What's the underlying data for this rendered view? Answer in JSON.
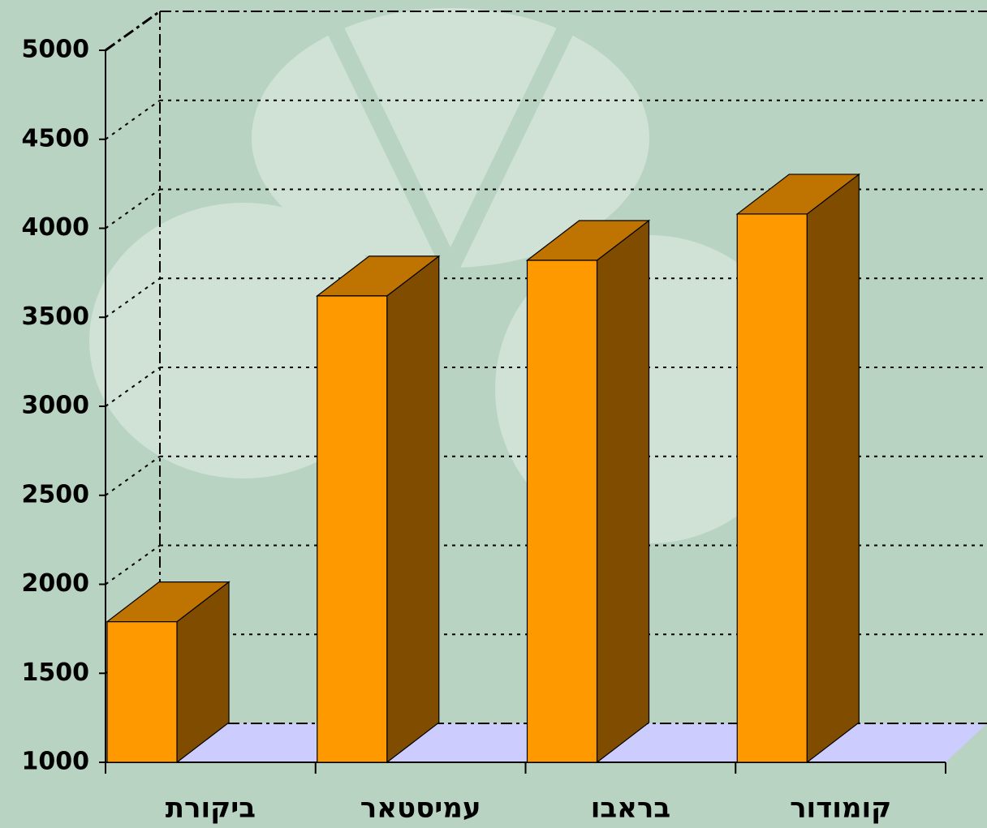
{
  "chart_data": {
    "type": "bar",
    "categories": [
      "ביקורת",
      "עמיסטאר",
      "בראבו",
      "קומודור"
    ],
    "values": [
      1790,
      3620,
      3820,
      4080
    ],
    "color": "#ff9900",
    "ylim": [
      1000,
      5000
    ],
    "yticks": [
      1000,
      1500,
      2000,
      2500,
      3000,
      3500,
      4000,
      4500,
      5000
    ],
    "grid": true
  }
}
